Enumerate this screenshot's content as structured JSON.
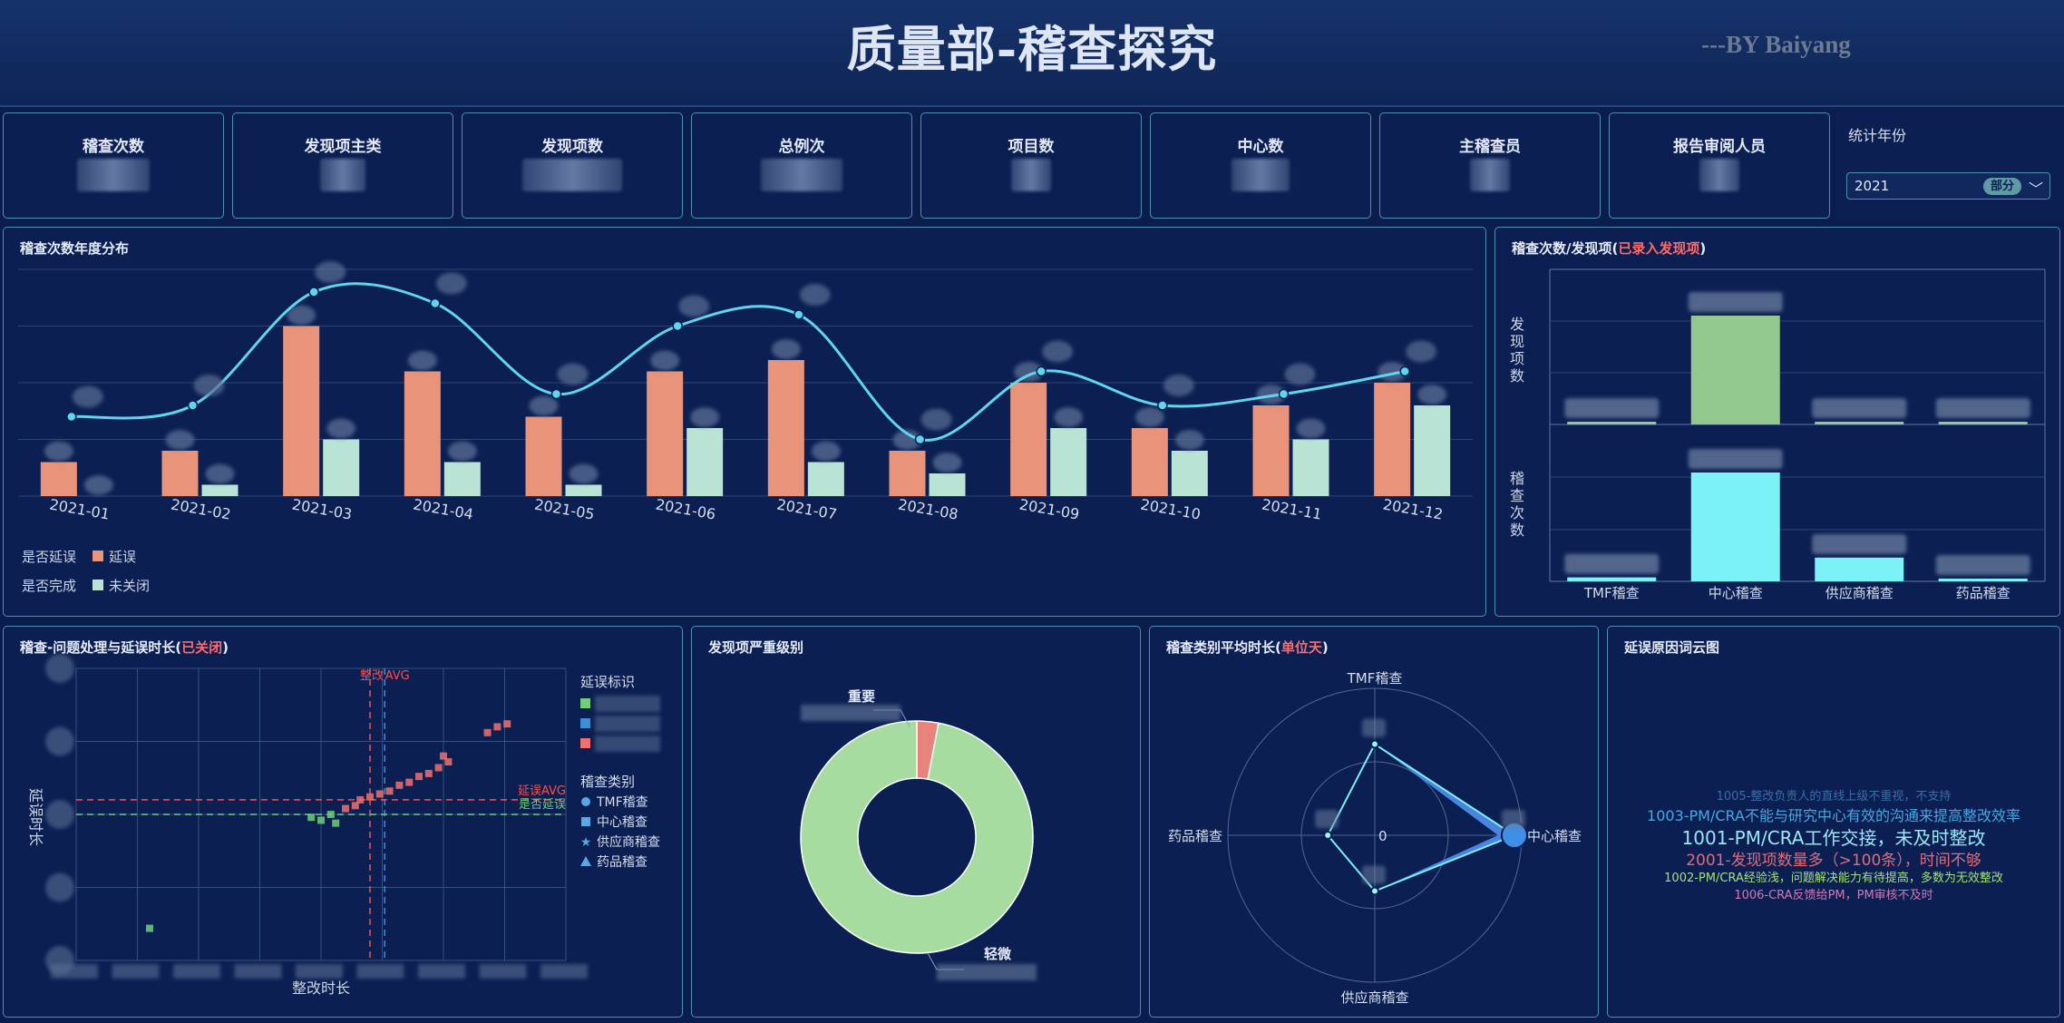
{
  "header": {
    "title": "质量部-稽查探究",
    "byline": "---BY Baiyang"
  },
  "kpis": [
    {
      "label": "稽查次数",
      "value": ""
    },
    {
      "label": "发现项主类",
      "value": ""
    },
    {
      "label": "发现项数",
      "value": ""
    },
    {
      "label": "总例次",
      "value": ""
    },
    {
      "label": "项目数",
      "value": ""
    },
    {
      "label": "中心数",
      "value": ""
    },
    {
      "label": "主稽查员",
      "value": ""
    },
    {
      "label": "报告审阅人员",
      "value": ""
    }
  ],
  "filter": {
    "label": "统计年份",
    "selected": "2021",
    "badge": "部分"
  },
  "panels": {
    "annual": {
      "title": "稽查次数年度分布"
    },
    "ratio": {
      "title": "稽查次数/发现项(",
      "title_highlight": "已录入发现项",
      "title_tail": ")"
    },
    "scatter": {
      "title": "稽查-问题处理与延误时长(",
      "title_highlight": "已关闭",
      "title_tail": ")"
    },
    "severity": {
      "title": "发现项严重级别"
    },
    "radar": {
      "title": "稽查类别平均时长(",
      "title_highlight": "单位天",
      "title_tail": ")"
    },
    "cloud": {
      "title": "延误原因词云图"
    }
  },
  "legend_annual": [
    {
      "group": "是否延误",
      "item": "延误",
      "color": "#e8937a"
    },
    {
      "group": "是否完成",
      "item": "未关闭",
      "color": "#b9e3d5"
    }
  ],
  "colors": {
    "accent_line": "#5fd6ef",
    "delay_bar": "#e8937a",
    "open_bar": "#b9e3d5",
    "finding_bar": "#93c98e",
    "audit_bar": "#7bf2f6",
    "danger": "#ff4d4d"
  },
  "chart_data": [
    {
      "type": "bar",
      "id": "annual",
      "categories": [
        "2021-01",
        "2021-02",
        "2021-03",
        "2021-04",
        "2021-05",
        "2021-06",
        "2021-07",
        "2021-08",
        "2021-09",
        "2021-10",
        "2021-11",
        "2021-12"
      ],
      "series": [
        {
          "name": "延误",
          "values": [
            3,
            4,
            15,
            11,
            7,
            11,
            12,
            4,
            10,
            6,
            8,
            10
          ]
        },
        {
          "name": "未关闭",
          "values": [
            0,
            1,
            5,
            3,
            1,
            6,
            3,
            2,
            6,
            4,
            5,
            8
          ]
        }
      ],
      "line": [
        7,
        8,
        18,
        17,
        9,
        15,
        16,
        5,
        11,
        8,
        9,
        11
      ],
      "ylim": [
        0,
        20
      ]
    },
    {
      "type": "bar",
      "id": "ratio",
      "categories": [
        "TMF稽查",
        "中心稽查",
        "供应商稽查",
        "药品稽查"
      ],
      "top_axis_label": "发现项数",
      "bottom_axis_label": "稽查次数",
      "findings": [
        1,
        90,
        2,
        1
      ],
      "audits": [
        2,
        55,
        12,
        1
      ],
      "findings_line": [
        1,
        2,
        2,
        1
      ]
    },
    {
      "type": "scatter",
      "id": "scatter",
      "xlabel": "整改时长",
      "ylabel": "延误时长",
      "ref_labels": {
        "x_left": "整改",
        "x_right": "AVG",
        "y_top": "延误AVG",
        "y_bottom": "是否延误"
      },
      "legend_delay_title": "延误标识",
      "legend_delay_colors": [
        "#6fcf7a",
        "#3f8fd8",
        "#f07070"
      ],
      "legend_type_title": "稽查类别",
      "legend_types": [
        {
          "label": "TMF稽查",
          "shape": "circle"
        },
        {
          "label": "中心稽查",
          "shape": "square"
        },
        {
          "label": "供应商稽查",
          "shape": "star"
        },
        {
          "label": "药品稽查",
          "shape": "triangle"
        }
      ],
      "xlim": [
        0,
        100
      ],
      "ylim": [
        0,
        100
      ],
      "ref_x": [
        60,
        63
      ],
      "ref_y": [
        55,
        50
      ],
      "points": [
        {
          "x": 48,
          "y": 49,
          "g": "green"
        },
        {
          "x": 50,
          "y": 48,
          "g": "green"
        },
        {
          "x": 52,
          "y": 50,
          "g": "green"
        },
        {
          "x": 53,
          "y": 47,
          "g": "green"
        },
        {
          "x": 55,
          "y": 52,
          "g": "red"
        },
        {
          "x": 57,
          "y": 53,
          "g": "red"
        },
        {
          "x": 58,
          "y": 55,
          "g": "red"
        },
        {
          "x": 60,
          "y": 56,
          "g": "red"
        },
        {
          "x": 62,
          "y": 57,
          "g": "red"
        },
        {
          "x": 64,
          "y": 58,
          "g": "red"
        },
        {
          "x": 66,
          "y": 60,
          "g": "red"
        },
        {
          "x": 68,
          "y": 61,
          "g": "red"
        },
        {
          "x": 70,
          "y": 63,
          "g": "red"
        },
        {
          "x": 72,
          "y": 64,
          "g": "red"
        },
        {
          "x": 74,
          "y": 66,
          "g": "red"
        },
        {
          "x": 76,
          "y": 68,
          "g": "red"
        },
        {
          "x": 75,
          "y": 70,
          "g": "red"
        },
        {
          "x": 84,
          "y": 78,
          "g": "red"
        },
        {
          "x": 86,
          "y": 80,
          "g": "red"
        },
        {
          "x": 88,
          "y": 81,
          "g": "red"
        },
        {
          "x": 15,
          "y": 11,
          "g": "green"
        }
      ]
    },
    {
      "type": "pie",
      "id": "severity",
      "labels": [
        "重要",
        "轻微"
      ],
      "values": [
        3,
        97
      ],
      "colors": [
        "#e8837c",
        "#a6dca0"
      ]
    },
    {
      "type": "radar",
      "id": "radar",
      "axes": [
        "TMF稽查",
        "中心稽查",
        "供应商稽查",
        "药品稽查"
      ],
      "center_label": "0",
      "max": 100,
      "values": [
        62,
        95,
        38,
        32
      ]
    }
  ],
  "word_cloud": [
    {
      "text": "1005-整改负责人的直线上级不重视，不支持",
      "color": "#3b6ea6",
      "size": 13
    },
    {
      "text": "1003-PM/CRA不能与研究中心有效的沟通来提高整改效率",
      "color": "#4aa7e0",
      "size": 16
    },
    {
      "text": "1001-PM/CRA工作交接，未及时整改",
      "color": "#9be7f6",
      "size": 20
    },
    {
      "text": "2001-发现项数量多（>100条），时间不够",
      "color": "#e06d7a",
      "size": 17
    },
    {
      "text": "1002-PM/CRA经验浅，问题解决能力有待提高，多数为无效整改",
      "color": "#a4e07a",
      "size": 13
    },
    {
      "text": "1006-CRA反馈给PM，PM审核不及时",
      "color": "#d679b4",
      "size": 13
    }
  ]
}
